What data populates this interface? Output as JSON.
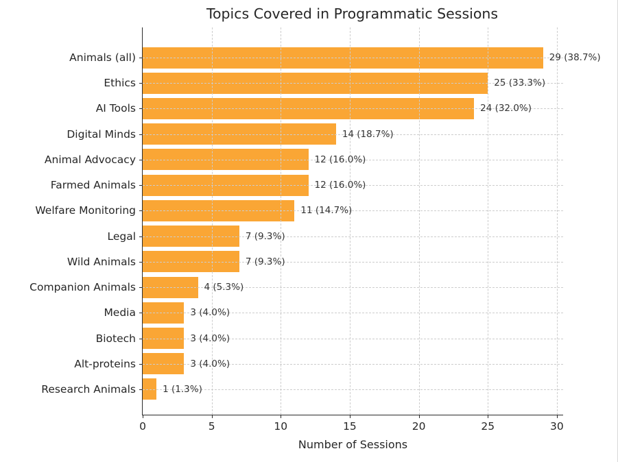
{
  "chart_data": {
    "type": "bar",
    "orientation": "horizontal",
    "title": "Topics Covered in Programmatic Sessions",
    "xlabel": "Number of Sessions",
    "categories": [
      "Animals (all)",
      "Ethics",
      "AI Tools",
      "Digital Minds",
      "Animal Advocacy",
      "Farmed Animals",
      "Welfare Monitoring",
      "Legal",
      "Wild Animals",
      "Companion Animals",
      "Media",
      "Biotech",
      "Alt-proteins",
      "Research Animals"
    ],
    "values": [
      29,
      25,
      24,
      14,
      12,
      12,
      11,
      7,
      7,
      4,
      3,
      3,
      3,
      1
    ],
    "value_labels": [
      "29 (38.7%)",
      "25 (33.3%)",
      "24 (32.0%)",
      "14 (18.7%)",
      "12 (16.0%)",
      "12 (16.0%)",
      "11 (14.7%)",
      "7 (9.3%)",
      "7 (9.3%)",
      "4 (5.3%)",
      "3 (4.0%)",
      "3 (4.0%)",
      "3 (4.0%)",
      "1 (1.3%)"
    ],
    "xticks": [
      0,
      5,
      10,
      15,
      20,
      25,
      30
    ],
    "xlim": [
      0,
      30.45
    ],
    "grid": {
      "style": "dashed",
      "axes": "both",
      "above_bars": true
    },
    "legend": null,
    "colors": {
      "bar": "#FAA635",
      "grid": "#cccccc",
      "text": "#262626",
      "value_label": "#333333",
      "spine": "#2a2a2a",
      "background": "#ffffff"
    }
  }
}
